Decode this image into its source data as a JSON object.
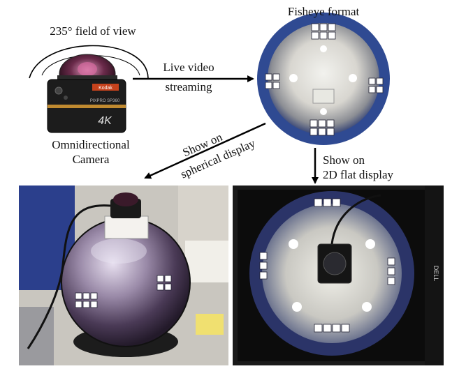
{
  "labels": {
    "fov": "235° field of view",
    "fisheye_format": "Fisheye format",
    "live_video_line1": "Live video",
    "live_video_line2": "streaming",
    "camera_line1": "Omnidirectional",
    "camera_line2": "Camera",
    "spherical_line1": "Show on",
    "spherical_line2": "spherical display",
    "flat_line1": "Show on",
    "flat_line2": "2D flat display"
  },
  "camera_branding": {
    "brand": "Kodak",
    "model": "PIXPRO SP360",
    "resolution": "4K"
  },
  "monitor_brand": "DELL"
}
